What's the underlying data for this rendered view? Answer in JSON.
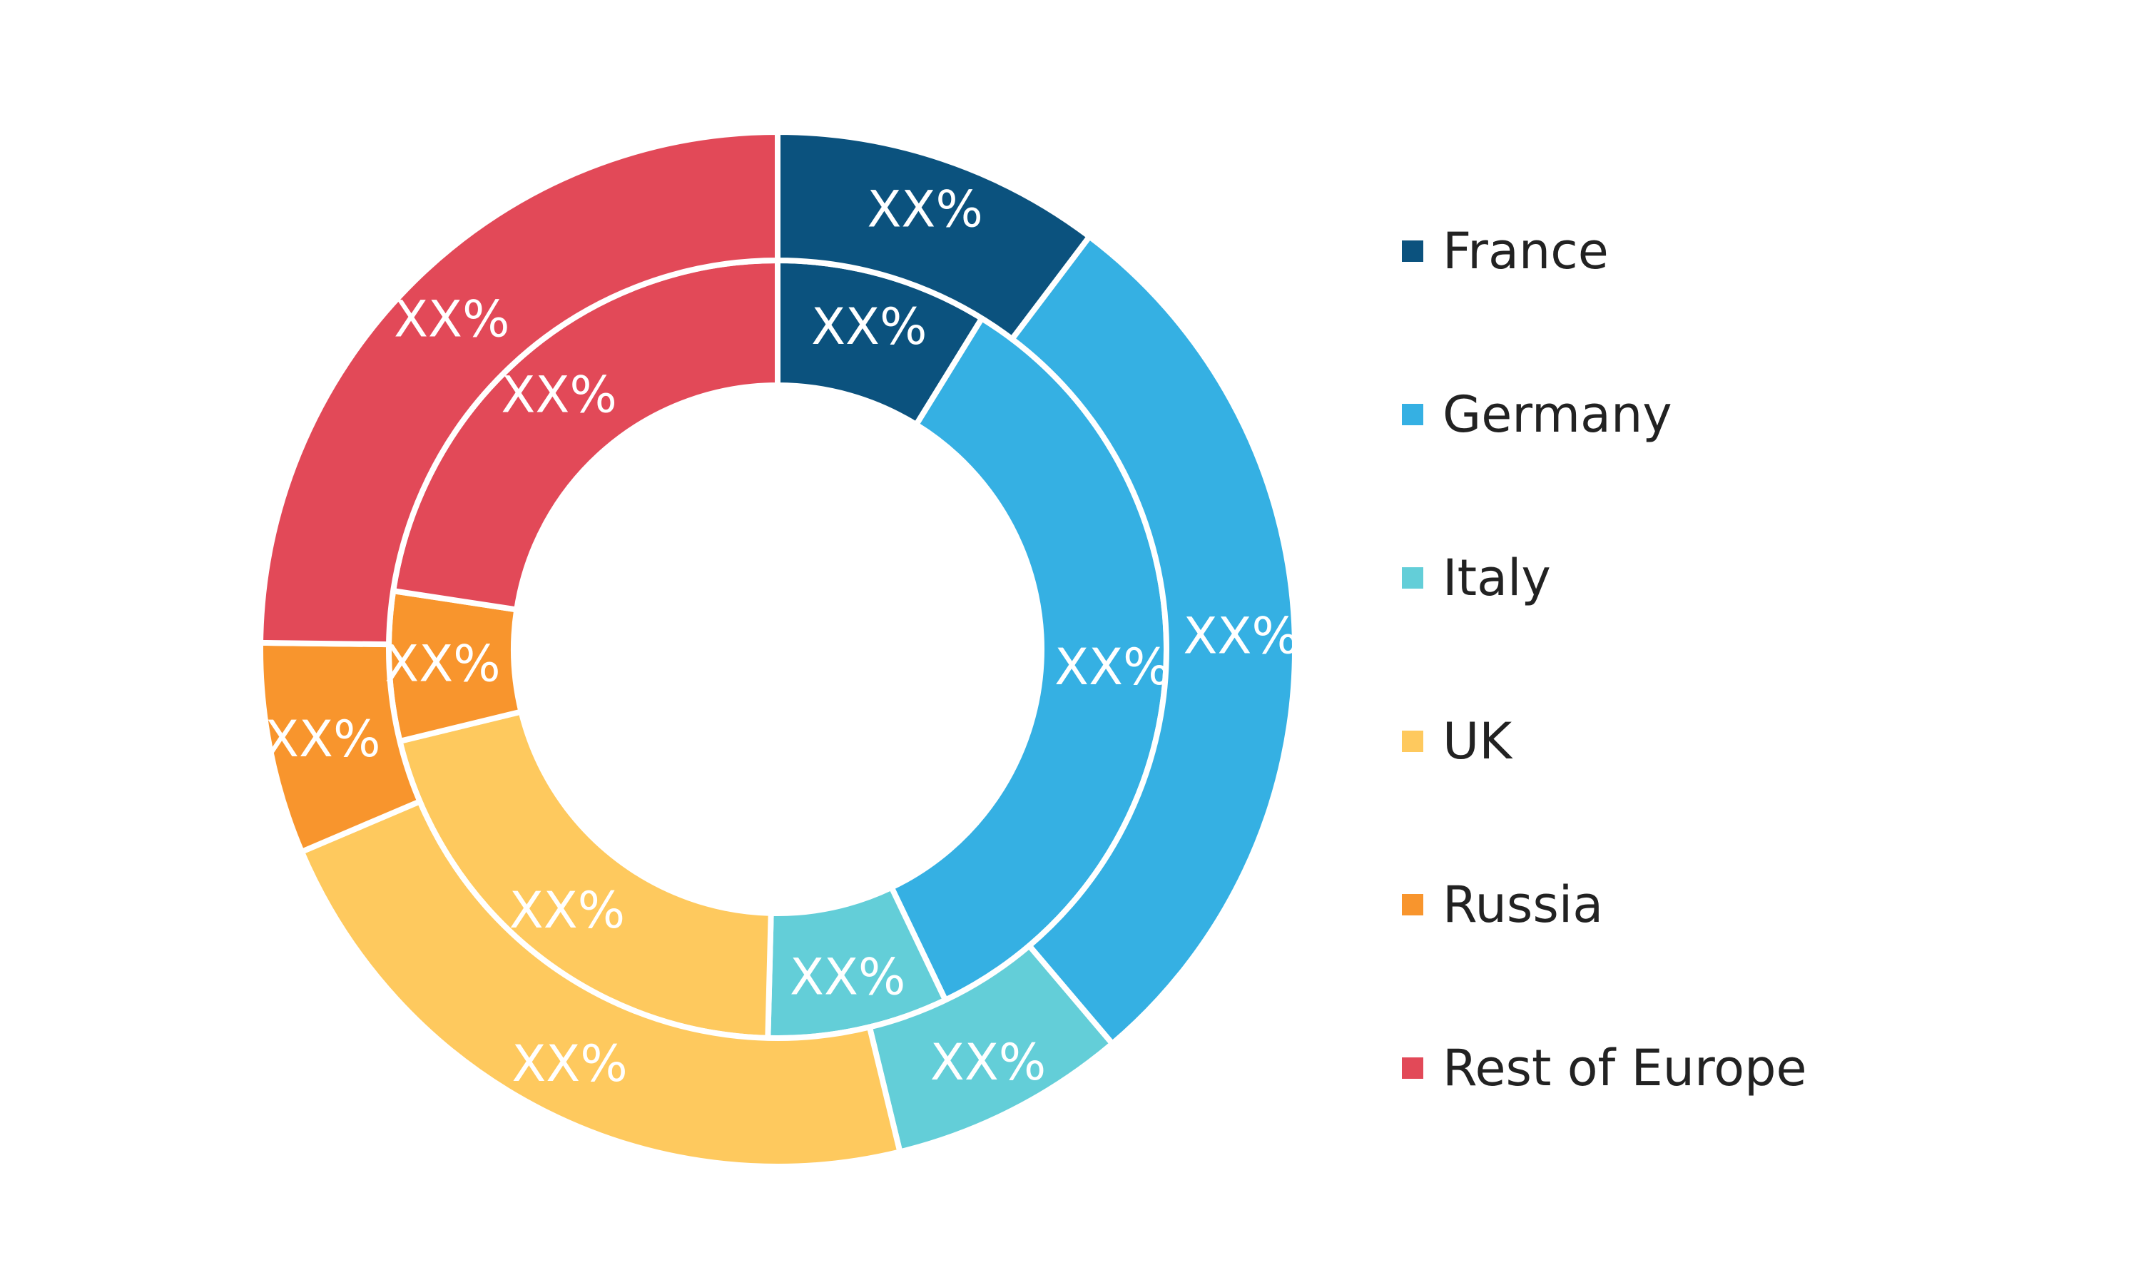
{
  "chart_data": {
    "type": "donut",
    "rings": [
      {
        "name": "",
        "ring": "inner",
        "values": [
          0.088,
          0.341,
          0.075,
          0.208,
          0.062,
          0.226
        ],
        "labels": [
          "XX%",
          "XX%",
          "XX%",
          "XX%",
          "XX%",
          "XX%"
        ]
      },
      {
        "name": "",
        "ring": "outer",
        "values": [
          0.103,
          0.285,
          0.074,
          0.224,
          0.066,
          0.248
        ],
        "labels": [
          "XX%",
          "XX%",
          "XX%",
          "XX%",
          "XX%",
          "XX%"
        ]
      }
    ],
    "categories": [
      "France",
      "Germany",
      "Italy",
      "UK",
      "Russia",
      "Rest of Europe"
    ],
    "colors": [
      "#0b527e",
      "#35b0e3",
      "#63ced8",
      "#fec95e",
      "#f8952d",
      "#e24958"
    ],
    "legend": {
      "position": "right",
      "items": [
        "France",
        "Germany",
        "Italy",
        "UK",
        "Russia",
        "Rest of Europe"
      ]
    },
    "start_angle_deg": 0,
    "direction": "clockwise"
  }
}
